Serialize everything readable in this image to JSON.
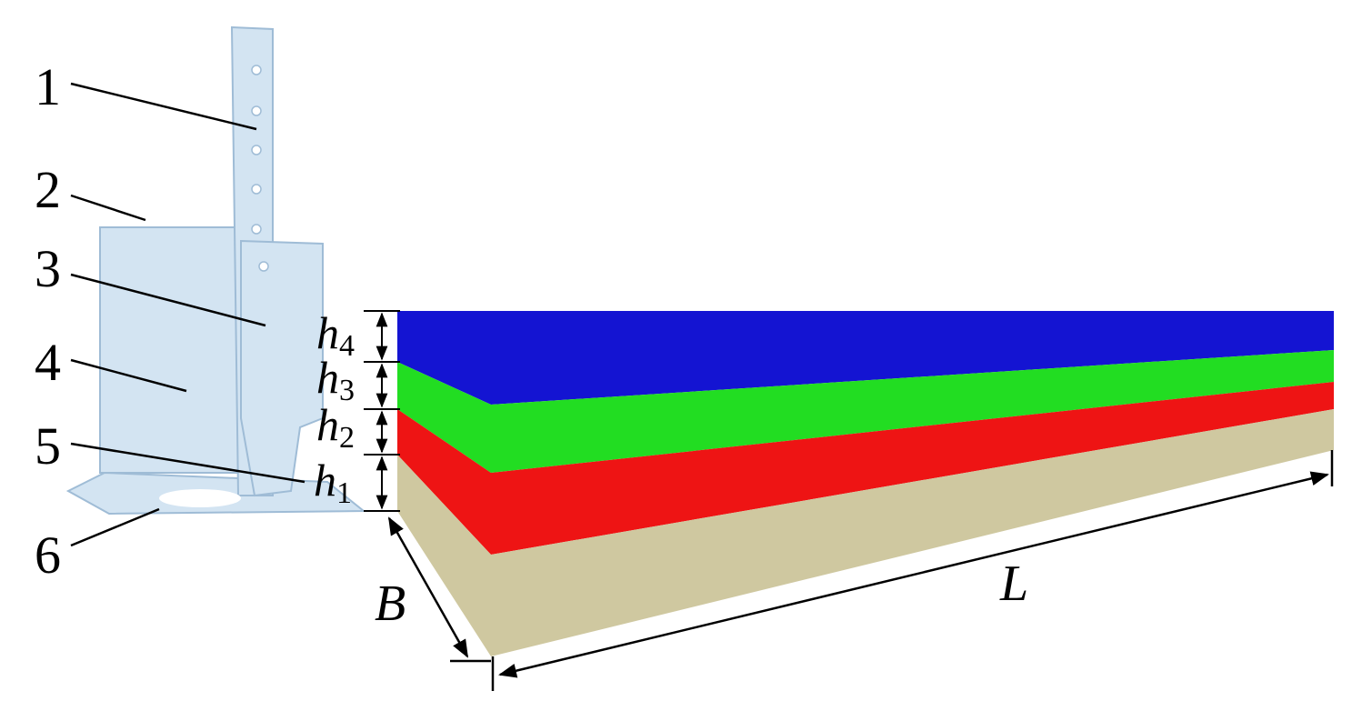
{
  "part_labels": [
    "1",
    "2",
    "3",
    "4",
    "5",
    "6"
  ],
  "layer_heights": [
    {
      "symbol": "h",
      "subscript": "4"
    },
    {
      "symbol": "h",
      "subscript": "3"
    },
    {
      "symbol": "h",
      "subscript": "2"
    },
    {
      "symbol": "h",
      "subscript": "1"
    }
  ],
  "dimensions": {
    "width": "B",
    "length": "L"
  }
}
